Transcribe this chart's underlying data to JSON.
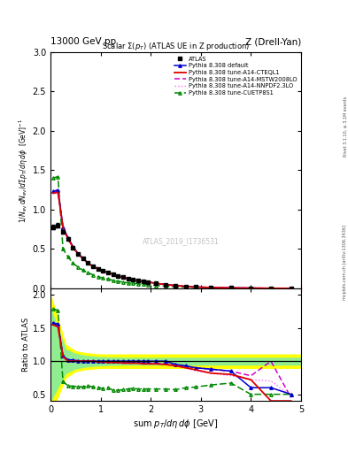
{
  "title_top": "13000 GeV pp",
  "title_right": "Z (Drell-Yan)",
  "plot_title": "Scalar Σ(p_T) (ATLAS UE in Z production)",
  "watermark": "ATLAS_2019_I1736531",
  "right_label": "Rivet 3.1.10, ≥ 3.1M events",
  "right_label2": "mcplots.cern.ch [arXiv:1306.3436]",
  "xdata": [
    0.05,
    0.15,
    0.25,
    0.35,
    0.45,
    0.55,
    0.65,
    0.75,
    0.85,
    0.95,
    1.05,
    1.15,
    1.25,
    1.35,
    1.45,
    1.55,
    1.65,
    1.75,
    1.85,
    1.95,
    2.1,
    2.3,
    2.5,
    2.7,
    2.9,
    3.2,
    3.6,
    4.0,
    4.4,
    4.8
  ],
  "atlas_y": [
    0.78,
    0.8,
    0.72,
    0.63,
    0.52,
    0.44,
    0.38,
    0.32,
    0.28,
    0.25,
    0.22,
    0.2,
    0.18,
    0.16,
    0.14,
    0.12,
    0.11,
    0.1,
    0.09,
    0.08,
    0.065,
    0.048,
    0.035,
    0.025,
    0.018,
    0.011,
    0.006,
    0.004,
    0.002,
    0.001
  ],
  "atlas_yerr": [
    0.03,
    0.03,
    0.02,
    0.015,
    0.012,
    0.01,
    0.008,
    0.007,
    0.006,
    0.005,
    0.005,
    0.004,
    0.004,
    0.003,
    0.003,
    0.003,
    0.002,
    0.002,
    0.002,
    0.002,
    0.002,
    0.001,
    0.001,
    0.001,
    0.001,
    0.001,
    0.001,
    0.001,
    0.001,
    0.001
  ],
  "default_y": [
    1.23,
    1.25,
    0.78,
    0.64,
    0.53,
    0.44,
    0.38,
    0.32,
    0.28,
    0.25,
    0.22,
    0.2,
    0.18,
    0.16,
    0.14,
    0.12,
    0.11,
    0.1,
    0.09,
    0.08,
    0.065,
    0.048,
    0.035,
    0.025,
    0.018,
    0.011,
    0.006,
    0.004,
    0.002,
    0.001
  ],
  "cteql1_y": [
    1.21,
    1.22,
    0.77,
    0.63,
    0.52,
    0.44,
    0.38,
    0.32,
    0.28,
    0.25,
    0.22,
    0.2,
    0.18,
    0.16,
    0.14,
    0.12,
    0.11,
    0.1,
    0.09,
    0.08,
    0.065,
    0.048,
    0.035,
    0.025,
    0.018,
    0.011,
    0.006,
    0.004,
    0.002,
    0.001
  ],
  "mstw_y": [
    1.22,
    1.23,
    0.78,
    0.64,
    0.53,
    0.44,
    0.38,
    0.32,
    0.28,
    0.25,
    0.22,
    0.2,
    0.18,
    0.16,
    0.14,
    0.12,
    0.11,
    0.1,
    0.09,
    0.08,
    0.065,
    0.048,
    0.035,
    0.025,
    0.018,
    0.011,
    0.006,
    0.004,
    0.002,
    0.001
  ],
  "nnpdf_y": [
    1.2,
    1.21,
    0.76,
    0.63,
    0.52,
    0.44,
    0.38,
    0.32,
    0.28,
    0.25,
    0.22,
    0.2,
    0.18,
    0.16,
    0.14,
    0.12,
    0.11,
    0.1,
    0.09,
    0.08,
    0.065,
    0.048,
    0.035,
    0.025,
    0.018,
    0.011,
    0.006,
    0.004,
    0.002,
    0.001
  ],
  "cuetp_y": [
    1.4,
    1.42,
    0.5,
    0.4,
    0.32,
    0.27,
    0.23,
    0.2,
    0.17,
    0.15,
    0.13,
    0.12,
    0.1,
    0.09,
    0.08,
    0.07,
    0.065,
    0.058,
    0.052,
    0.046,
    0.038,
    0.028,
    0.02,
    0.015,
    0.011,
    0.007,
    0.004,
    0.002,
    0.001,
    0.001
  ],
  "ratio_default": [
    1.58,
    1.56,
    1.08,
    1.02,
    1.02,
    1.0,
    1.0,
    1.0,
    1.0,
    1.0,
    1.0,
    1.0,
    1.0,
    1.0,
    1.0,
    1.0,
    1.0,
    1.0,
    1.0,
    1.0,
    1.0,
    1.0,
    0.95,
    0.93,
    0.9,
    0.88,
    0.85,
    0.6,
    0.6,
    0.5
  ],
  "ratio_cteql1": [
    1.55,
    1.52,
    1.07,
    1.0,
    1.0,
    1.0,
    1.0,
    1.0,
    1.0,
    0.99,
    0.99,
    0.98,
    0.98,
    0.98,
    0.97,
    0.97,
    0.97,
    0.97,
    0.96,
    0.96,
    0.96,
    0.95,
    0.93,
    0.9,
    0.87,
    0.82,
    0.8,
    0.72,
    0.4,
    0.4
  ],
  "ratio_mstw": [
    1.56,
    1.54,
    1.08,
    1.02,
    1.01,
    1.01,
    1.0,
    1.0,
    1.0,
    1.0,
    0.99,
    0.99,
    0.99,
    0.99,
    0.98,
    0.98,
    0.98,
    0.98,
    0.97,
    0.97,
    0.97,
    0.96,
    0.95,
    0.92,
    0.9,
    0.88,
    0.85,
    0.78,
    1.0,
    0.45
  ],
  "ratio_nnpdf": [
    1.54,
    1.51,
    1.05,
    1.0,
    1.0,
    1.0,
    1.0,
    1.0,
    1.0,
    1.0,
    0.99,
    0.99,
    0.98,
    0.98,
    0.97,
    0.97,
    0.97,
    0.97,
    0.96,
    0.96,
    0.96,
    0.95,
    0.93,
    0.9,
    0.85,
    0.82,
    0.78,
    0.72,
    0.7,
    0.48
  ],
  "ratio_cuetp": [
    1.79,
    1.77,
    0.69,
    0.63,
    0.62,
    0.62,
    0.61,
    0.63,
    0.61,
    0.6,
    0.59,
    0.6,
    0.56,
    0.56,
    0.57,
    0.58,
    0.59,
    0.58,
    0.58,
    0.58,
    0.58,
    0.58,
    0.57,
    0.6,
    0.61,
    0.64,
    0.67,
    0.5,
    0.5,
    0.5
  ],
  "band_x": [
    0.0,
    0.3,
    0.5,
    0.7,
    1.0,
    1.5,
    2.0,
    2.5,
    3.0,
    3.5,
    4.0,
    4.5,
    5.0
  ],
  "band_yellow_lo": [
    0.2,
    0.75,
    0.85,
    0.88,
    0.9,
    0.9,
    0.9,
    0.9,
    0.9,
    0.9,
    0.9,
    0.9,
    0.9
  ],
  "band_yellow_hi": [
    2.0,
    1.25,
    1.15,
    1.12,
    1.1,
    1.1,
    1.1,
    1.1,
    1.1,
    1.1,
    1.1,
    1.1,
    1.1
  ],
  "band_green_lo": [
    0.4,
    0.82,
    0.89,
    0.92,
    0.94,
    0.95,
    0.95,
    0.95,
    0.95,
    0.95,
    0.95,
    0.95,
    0.95
  ],
  "band_green_hi": [
    1.8,
    1.18,
    1.11,
    1.08,
    1.06,
    1.05,
    1.05,
    1.05,
    1.05,
    1.05,
    1.05,
    1.05,
    1.05
  ],
  "color_default": "#0000cc",
  "color_cteql1": "#dd0000",
  "color_mstw": "#cc00cc",
  "color_nnpdf": "#ff66ff",
  "color_cuetp": "#008800",
  "color_atlas": "#000000",
  "xlim": [
    0,
    5.0
  ],
  "ylim_main": [
    0,
    3.0
  ],
  "ylim_ratio": [
    0.4,
    2.1
  ],
  "yticks_main": [
    0,
    0.5,
    1.0,
    1.5,
    2.0,
    2.5,
    3.0
  ],
  "yticks_ratio": [
    0.5,
    1.0,
    1.5,
    2.0
  ],
  "xticks": [
    0,
    1,
    2,
    3,
    4,
    5
  ]
}
